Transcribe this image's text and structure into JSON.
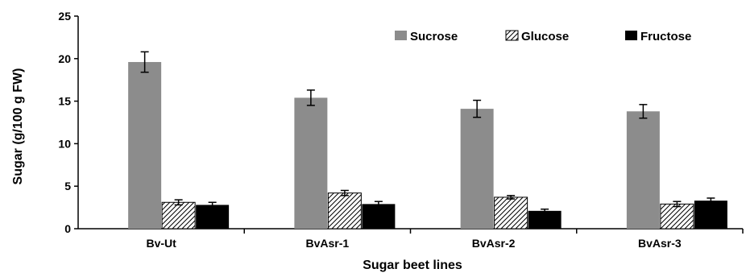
{
  "chart_data": {
    "type": "bar",
    "title": "",
    "xlabel": "Sugar beet lines",
    "ylabel": "Sugar (g/100 g FW)",
    "ylim": [
      0,
      25
    ],
    "yticks": [
      0,
      5,
      10,
      15,
      20,
      25
    ],
    "grid": false,
    "legend_position": "top-right",
    "categories": [
      "Bv-Ut",
      "BvAsr-1",
      "BvAsr-2",
      "BvAsr-3"
    ],
    "series": [
      {
        "name": "Sucrose",
        "values": [
          19.6,
          15.4,
          14.1,
          13.8
        ],
        "errors": [
          1.2,
          0.9,
          1.0,
          0.8
        ],
        "color": "#8c8c8c",
        "fill": "solid"
      },
      {
        "name": "Glucose",
        "values": [
          3.1,
          4.2,
          3.7,
          2.9
        ],
        "errors": [
          0.3,
          0.3,
          0.2,
          0.3
        ],
        "color": "#ffffff",
        "fill": "hatch"
      },
      {
        "name": "Fructose",
        "values": [
          2.8,
          2.9,
          2.1,
          3.3
        ],
        "errors": [
          0.3,
          0.3,
          0.2,
          0.3
        ],
        "color": "#000000",
        "fill": "solid"
      }
    ]
  }
}
